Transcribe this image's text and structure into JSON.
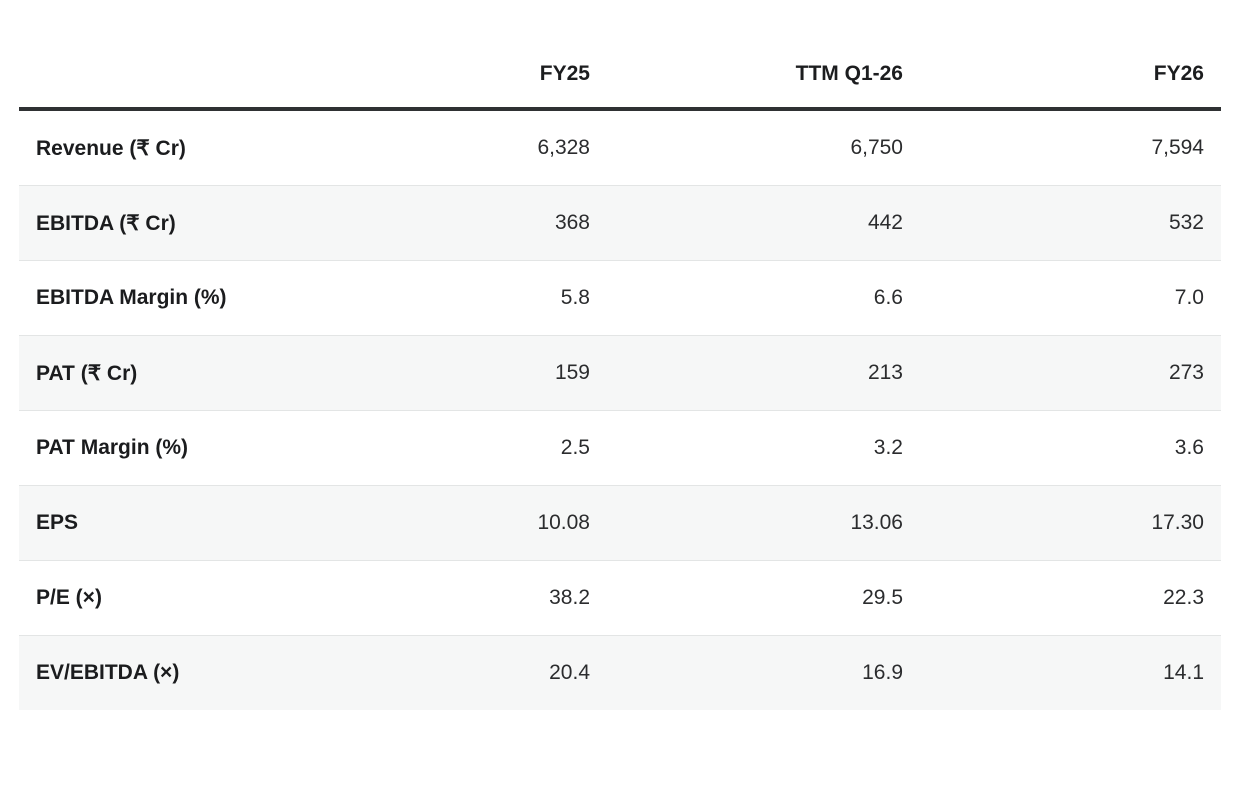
{
  "chart_data": {
    "type": "table",
    "title": "",
    "columns": [
      "",
      "FY25",
      "TTM Q1-26",
      "FY26"
    ],
    "rows": [
      {
        "label": "Revenue (₹ Cr)",
        "values": [
          "6,328",
          "6,750",
          "7,594"
        ]
      },
      {
        "label": "EBITDA (₹ Cr)",
        "values": [
          "368",
          "442",
          "532"
        ]
      },
      {
        "label": "EBITDA Margin (%)",
        "values": [
          "5.8",
          "6.6",
          "7.0"
        ]
      },
      {
        "label": "PAT (₹ Cr)",
        "values": [
          "159",
          "213",
          "273"
        ]
      },
      {
        "label": "PAT Margin (%)",
        "values": [
          "2.5",
          "3.2",
          "3.6"
        ]
      },
      {
        "label": "EPS",
        "values": [
          "10.08",
          "13.06",
          "17.30"
        ]
      },
      {
        "label": "P/E (×)",
        "values": [
          "38.2",
          "29.5",
          "22.3"
        ]
      },
      {
        "label": "EV/EBITDA (×)",
        "values": [
          "20.4",
          "16.9",
          "14.1"
        ]
      }
    ],
    "layout_hints": {
      "value_alignment": "right",
      "zebra_striping": true,
      "grid": "horizontal-separators-only"
    },
    "colors": {
      "header_rule": "#2f3133",
      "zebra_row_bg": "#f6f7f7",
      "row_separator": "#e3e5e5",
      "label_text": "#1b1c1e",
      "value_text": "#2b2c2e",
      "background": "#ffffff"
    }
  }
}
